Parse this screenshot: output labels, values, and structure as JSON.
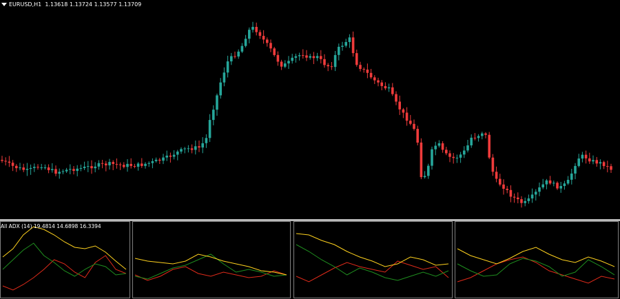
{
  "main": {
    "symbol": "EURUSD,H1",
    "ohlc": "1.13618 1.13724 1.13577 1.13709"
  },
  "indicator": {
    "label": "All ADX (14) 19.4814 14.6898 16.3394"
  },
  "colors": {
    "bull": "#26a69a",
    "bear": "#ef3b3b",
    "adx": "#ffd21e",
    "plus_di": "#1f8f1f",
    "minus_di": "#e02b1a",
    "separator": "#b8b8b8",
    "panel_border": "#808080"
  }
}
